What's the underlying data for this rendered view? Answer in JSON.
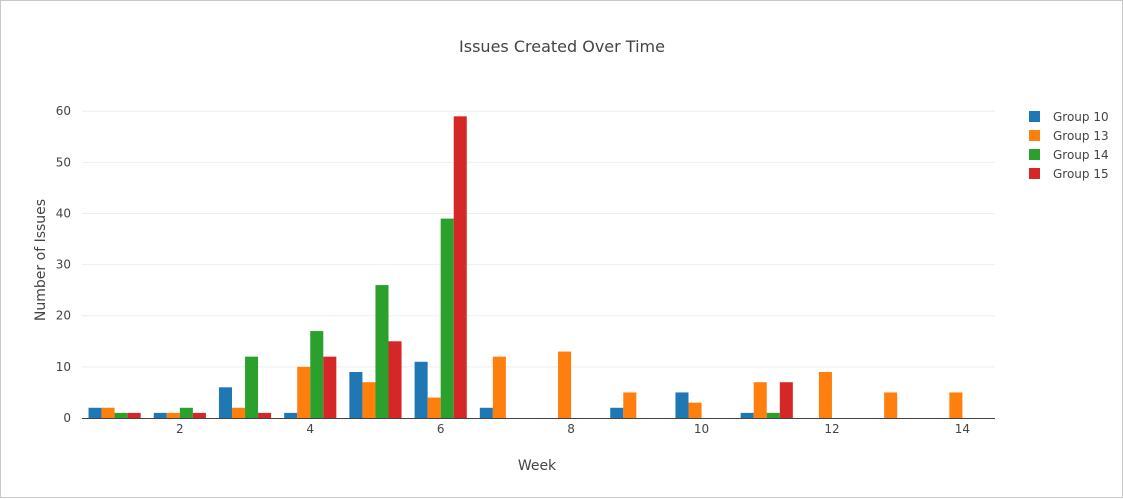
{
  "chart_data": {
    "type": "bar",
    "title": "Issues Created Over Time",
    "xlabel": "Week",
    "ylabel": "Number of Issues",
    "x": [
      1,
      2,
      3,
      4,
      5,
      6,
      7,
      8,
      9,
      10,
      11,
      12,
      13,
      14
    ],
    "x_tick_labels": [
      "2",
      "4",
      "6",
      "8",
      "10",
      "12",
      "14"
    ],
    "x_tick_values": [
      2,
      4,
      6,
      8,
      10,
      12,
      14
    ],
    "y_tick_labels": [
      "0",
      "10",
      "20",
      "30",
      "40",
      "50",
      "60"
    ],
    "y_tick_values": [
      0,
      10,
      20,
      30,
      40,
      50,
      60
    ],
    "ylim": [
      0,
      62
    ],
    "xlim": [
      0.5,
      14.5
    ],
    "grid": true,
    "legend_position": "top-right",
    "series": [
      {
        "name": "Group 10",
        "color": "#1f77b4",
        "values": [
          2,
          1,
          6,
          1,
          9,
          11,
          2,
          0,
          2,
          5,
          1,
          0,
          0,
          0
        ]
      },
      {
        "name": "Group 13",
        "color": "#ff7f0e",
        "values": [
          2,
          1,
          2,
          10,
          7,
          4,
          12,
          13,
          5,
          3,
          7,
          9,
          5,
          5
        ]
      },
      {
        "name": "Group 14",
        "color": "#2ca02c",
        "values": [
          1,
          2,
          12,
          17,
          26,
          39,
          0,
          0,
          0,
          0,
          1,
          0,
          0,
          0
        ]
      },
      {
        "name": "Group 15",
        "color": "#d62728",
        "values": [
          1,
          1,
          1,
          12,
          15,
          59,
          0,
          0,
          0,
          0,
          7,
          0,
          0,
          0
        ]
      }
    ]
  }
}
